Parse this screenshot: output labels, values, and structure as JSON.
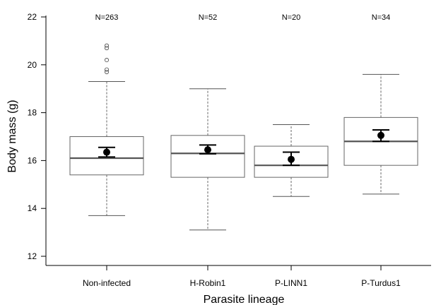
{
  "chart_data": {
    "type": "box",
    "xlabel": "Parasite lineage",
    "ylabel": "Body mass (g)",
    "ylim": [
      12,
      22
    ],
    "yticks": [
      12,
      14,
      16,
      18,
      20,
      22
    ],
    "grid": false,
    "categories": [
      "Non-infected",
      "H-Robin1",
      "P-LINN1",
      "P-Turdus1"
    ],
    "counts": [
      "N=263",
      "N=52",
      "N=20",
      "N=34"
    ],
    "boxes": [
      {
        "whisker_low": 13.7,
        "q1": 15.4,
        "median": 16.1,
        "q3": 17.0,
        "whisker_high": 19.3,
        "outliers": [
          19.7,
          19.8,
          20.2,
          20.7,
          20.8
        ],
        "mean": 16.35,
        "ci_low": 16.15,
        "ci_high": 16.55
      },
      {
        "whisker_low": 13.1,
        "q1": 15.3,
        "median": 16.3,
        "q3": 17.05,
        "whisker_high": 19.0,
        "outliers": [],
        "mean": 16.45,
        "ci_low": 16.28,
        "ci_high": 16.65
      },
      {
        "whisker_low": 14.5,
        "q1": 15.3,
        "median": 15.8,
        "q3": 16.6,
        "whisker_high": 17.5,
        "outliers": [],
        "mean": 16.05,
        "ci_low": 15.8,
        "ci_high": 16.35
      },
      {
        "whisker_low": 14.6,
        "q1": 15.8,
        "median": 16.8,
        "q3": 17.8,
        "whisker_high": 19.6,
        "outliers": [],
        "mean": 17.05,
        "ci_low": 16.8,
        "ci_high": 17.28
      }
    ]
  }
}
